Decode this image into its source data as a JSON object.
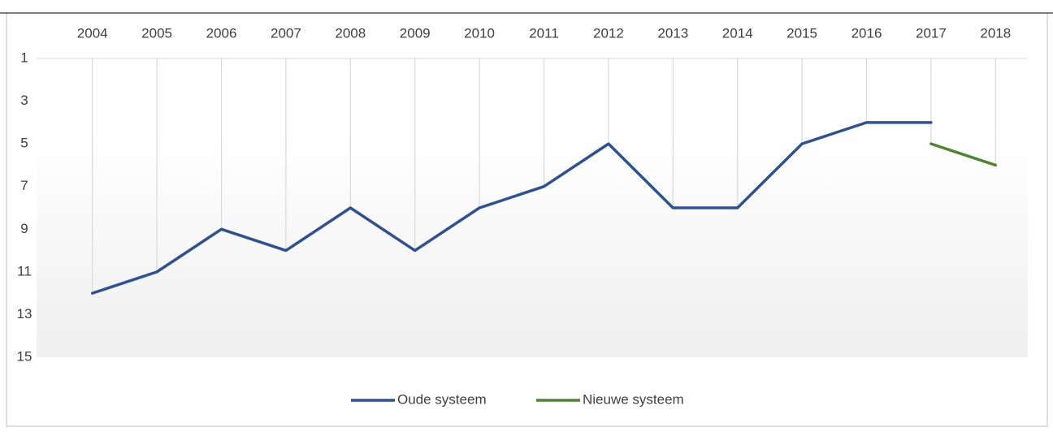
{
  "chart_data": {
    "type": "line",
    "categories": [
      "2004",
      "2005",
      "2006",
      "2007",
      "2008",
      "2009",
      "2010",
      "2011",
      "2012",
      "2013",
      "2014",
      "2015",
      "2016",
      "2017",
      "2018"
    ],
    "series": [
      {
        "name": "Oude systeem",
        "color": "#2f528f",
        "values": [
          12,
          11,
          9,
          10,
          8,
          10,
          8,
          7,
          5,
          8,
          8,
          5,
          4,
          4,
          null
        ]
      },
      {
        "name": "Nieuwe systeem",
        "color": "#548235",
        "values": [
          null,
          null,
          null,
          null,
          null,
          null,
          null,
          null,
          null,
          null,
          null,
          null,
          null,
          5,
          6
        ]
      }
    ],
    "ylim": [
      1,
      15
    ],
    "yticks": [
      1,
      3,
      5,
      7,
      9,
      11,
      13,
      15
    ],
    "y_inverted": true,
    "drop_lines": true,
    "legend": "bottom"
  }
}
